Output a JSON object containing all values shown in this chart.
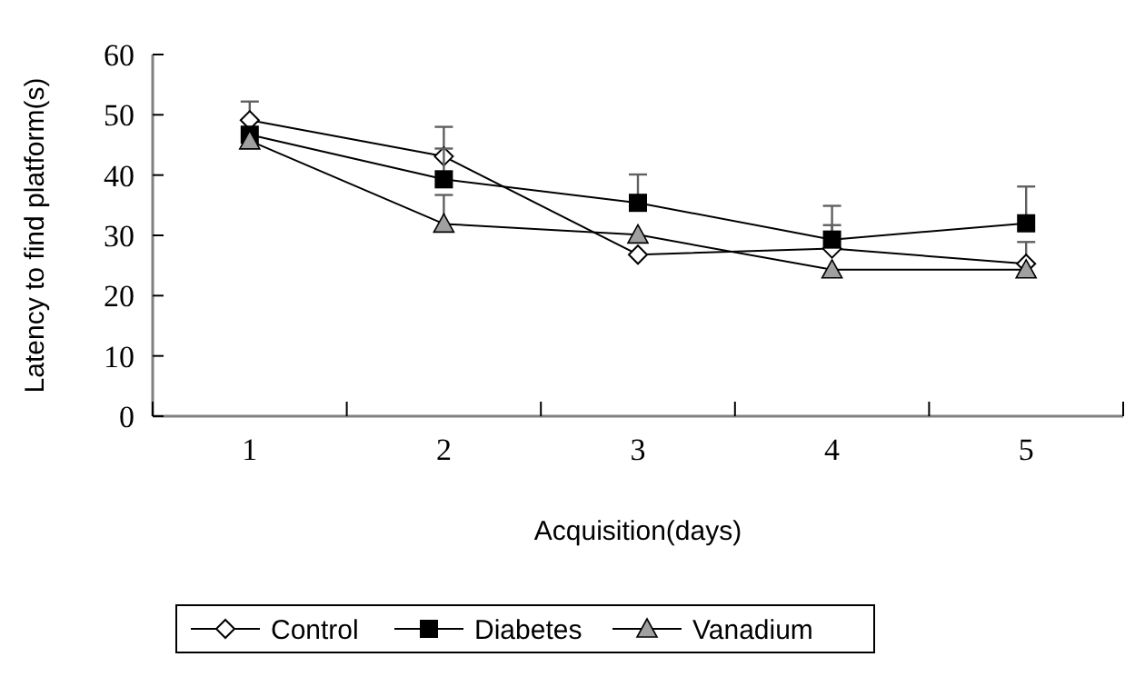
{
  "chart_data": {
    "type": "line",
    "xlabel": "Acquisition(days)",
    "ylabel": "Latency to find platform(s)",
    "categories": [
      "1",
      "2",
      "3",
      "4",
      "5"
    ],
    "ylim": [
      0,
      60
    ],
    "yticks": [
      0,
      10,
      20,
      30,
      40,
      50,
      60
    ],
    "grid": false,
    "legend": "bottom",
    "series": [
      {
        "name": "Control",
        "color": "#000000",
        "marker": "diamond",
        "values": [
          49.1,
          43.1,
          26.8,
          27.8,
          25.3
        ],
        "errors": [
          [
            49.1,
            52.2
          ],
          [
            43.1,
            48.0
          ],
          null,
          [
            27.8,
            31.7
          ],
          [
            25.3,
            28.9
          ]
        ]
      },
      {
        "name": "Diabetes",
        "color": "#000000",
        "marker": "square",
        "values": [
          46.7,
          39.3,
          35.4,
          29.3,
          32.0
        ],
        "errors": [
          null,
          [
            39.3,
            44.4
          ],
          [
            35.4,
            40.1
          ],
          [
            29.3,
            34.9
          ],
          [
            32.0,
            38.1
          ]
        ]
      },
      {
        "name": "Vanadium",
        "color": "#000000",
        "marker": "triangle",
        "values": [
          45.7,
          31.9,
          30.1,
          24.3,
          24.3
        ],
        "errors": [
          null,
          [
            31.9,
            36.7
          ],
          null,
          null,
          null
        ]
      }
    ]
  }
}
